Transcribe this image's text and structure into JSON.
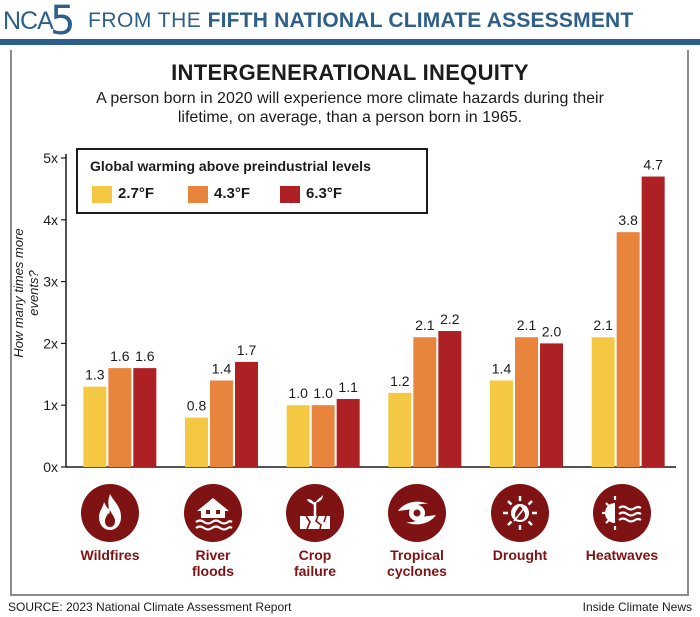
{
  "header": {
    "logo_text": "NCA",
    "logo_number": "5",
    "prefix": "FROM THE",
    "bold_text": "FIFTH NATIONAL CLIMATE ASSESSMENT"
  },
  "footer": {
    "source": "SOURCE: 2023 National Climate Assessment Report",
    "credit": "Inside Climate News"
  },
  "icons": [
    "fire-icon",
    "flooded-house-icon",
    "cracked-plant-icon",
    "cyclone-icon",
    "sun-drought-icon",
    "heat-sun-waves-icon"
  ],
  "chart_data": {
    "type": "bar",
    "title": "INTERGENERATIONAL INEQUITY",
    "subtitle_line1": "A person born in 2020 will experience more climate hazards during their",
    "subtitle_line2": "lifetime, on average, than a person born in 1965.",
    "ylabel": "How many times more events?",
    "ylim": [
      0,
      5
    ],
    "yticks": [
      "0x",
      "1x",
      "2x",
      "3x",
      "4x",
      "5x"
    ],
    "legend_title": "Global warming above preindustrial levels",
    "legend_placement": "top-left",
    "grid": false,
    "categories": [
      "Wildfires",
      "River floods",
      "Crop failure",
      "Tropical cyclones",
      "Drought",
      "Heatwaves"
    ],
    "category_lines": [
      [
        "Wildfires"
      ],
      [
        "River",
        "floods"
      ],
      [
        "Crop",
        "failure"
      ],
      [
        "Tropical",
        "cyclones"
      ],
      [
        "Drought"
      ],
      [
        "Heatwaves"
      ]
    ],
    "series": [
      {
        "name": "2.7°F",
        "color": "#f5c843",
        "values": [
          1.3,
          0.8,
          1.0,
          1.2,
          1.4,
          2.1
        ],
        "labels": [
          "1.3",
          "0.8",
          "1.0",
          "1.2",
          "1.4",
          "2.1"
        ]
      },
      {
        "name": "4.3°F",
        "color": "#e8843c",
        "values": [
          1.6,
          1.4,
          1.0,
          2.1,
          2.1,
          3.8
        ],
        "labels": [
          "1.6",
          "1.4",
          "1.0",
          "2.1",
          "2.1",
          "3.8"
        ]
      },
      {
        "name": "6.3°F",
        "color": "#ad2024",
        "values": [
          1.6,
          1.7,
          1.1,
          2.2,
          2.0,
          4.7
        ],
        "labels": [
          "1.6",
          "1.7",
          "1.1",
          "2.2",
          "2.0",
          "4.7"
        ]
      }
    ],
    "colors": {
      "icon_bg": "#7f1212",
      "label": "#7f1212",
      "axis": "#1c1c1c",
      "header": "#2e5f8a"
    }
  }
}
